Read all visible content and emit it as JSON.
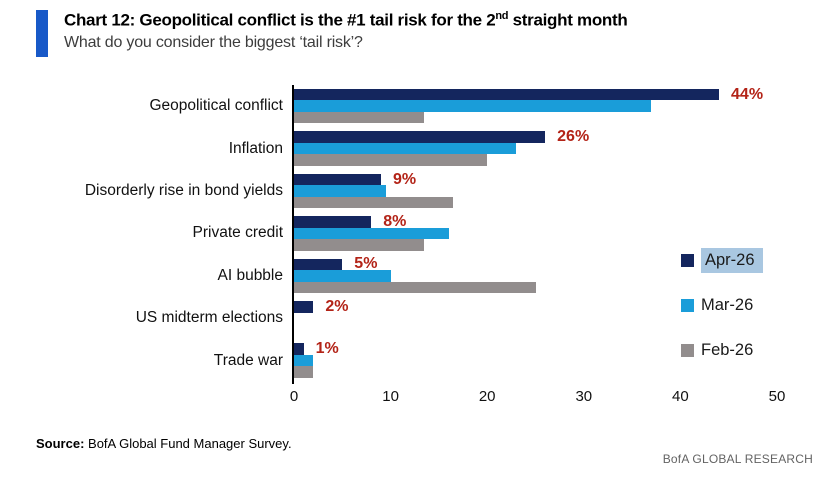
{
  "header": {
    "title_prefix": "Chart 12: Geopolitical conflict is the #1 tail risk for the 2",
    "title_sup": "nd",
    "title_suffix": " straight month",
    "subtitle": "What do you consider the biggest ‘tail risk’?",
    "accent_color": "#1859C8"
  },
  "chart_data": {
    "type": "bar",
    "orientation": "horizontal",
    "title": "Chart 12: Geopolitical conflict is the #1 tail risk for the 2nd straight month",
    "subtitle": "What do you consider the biggest ‘tail risk’?",
    "categories": [
      "Geopolitical conflict",
      "Inflation",
      "Disorderly rise in bond yields",
      "Private credit",
      "AI bubble",
      "US midterm elections",
      "Trade war"
    ],
    "series": [
      {
        "name": "Apr-26",
        "color": "#14265E",
        "values": [
          44,
          26,
          9,
          8,
          5,
          2,
          1
        ]
      },
      {
        "name": "Mar-26",
        "color": "#1A9DD9",
        "values": [
          37,
          23,
          9.5,
          16,
          10,
          0,
          2
        ]
      },
      {
        "name": "Feb-26",
        "color": "#928D8D",
        "values": [
          13.5,
          20,
          16.5,
          13.5,
          25,
          0,
          2
        ]
      }
    ],
    "data_labels": [
      "44%",
      "26%",
      "9%",
      "8%",
      "5%",
      "2%",
      "1%"
    ],
    "data_label_color": "#B32317",
    "x_ticks": [
      0,
      10,
      20,
      30,
      40,
      50
    ],
    "xlim": [
      0,
      50
    ],
    "grid": false,
    "legend_position": "right",
    "legend_highlight": {
      "series": "Apr-26",
      "color": "#A9C7E1"
    }
  },
  "footer": {
    "source_label": "Source:",
    "source_text": " BofA Global Fund Manager Survey.",
    "brand": "BofA GLOBAL RESEARCH"
  }
}
